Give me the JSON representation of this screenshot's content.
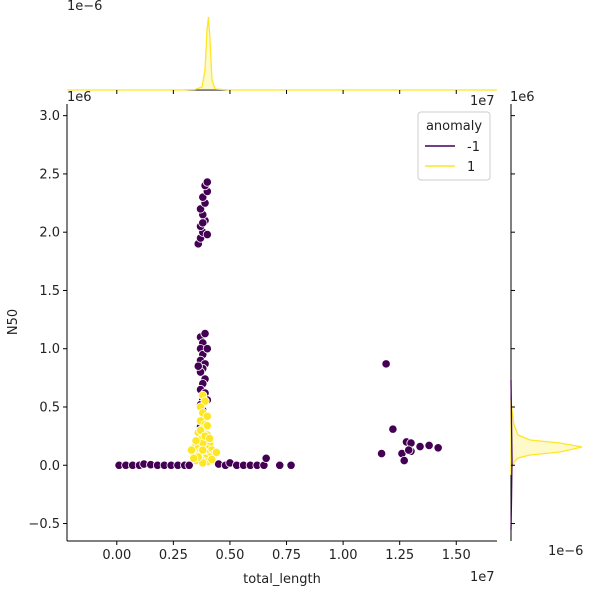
{
  "chart_data": {
    "type": "scatter",
    "subtype": "jointplot",
    "xlabel": "total_length",
    "ylabel": "N50",
    "x_offset_text": "1e7",
    "y_offset_text": "1e6",
    "x_scale": 10000000,
    "y_scale": 1000000,
    "xlim": [
      -2200000,
      16800000
    ],
    "ylim": [
      -650000,
      3100000
    ],
    "x_ticks": [
      0,
      2500000,
      5000000,
      7500000,
      10000000,
      12500000,
      15000000
    ],
    "x_tick_labels": [
      "0.00",
      "0.25",
      "0.50",
      "0.75",
      "1.00",
      "1.25",
      "1.50"
    ],
    "y_ticks": [
      -500000,
      0,
      500000,
      1000000,
      1500000,
      2000000,
      2500000,
      3000000
    ],
    "y_tick_labels": [
      "−0.5",
      "0.0",
      "0.5",
      "1.0",
      "1.5",
      "2.0",
      "2.5",
      "3.0"
    ],
    "grid": false,
    "legend": {
      "title": "anomaly",
      "placement": "top-right",
      "entries": [
        {
          "label": "-1",
          "color": "#440154"
        },
        {
          "label": "1",
          "color": "#fde725"
        }
      ]
    },
    "marginal_top_offset_text": "1e−6",
    "marginal_right_offset_text": "1e−6",
    "series": [
      {
        "name": "-1",
        "color": "#440154",
        "points": [
          [
            100000,
            0
          ],
          [
            400000,
            0
          ],
          [
            700000,
            0
          ],
          [
            1000000,
            0
          ],
          [
            1200000,
            10000
          ],
          [
            1500000,
            5000
          ],
          [
            1800000,
            0
          ],
          [
            2100000,
            0
          ],
          [
            2400000,
            0
          ],
          [
            2700000,
            0
          ],
          [
            3000000,
            0
          ],
          [
            3200000,
            0
          ],
          [
            4500000,
            10000
          ],
          [
            4800000,
            0
          ],
          [
            5000000,
            20000
          ],
          [
            5300000,
            0
          ],
          [
            5600000,
            0
          ],
          [
            5900000,
            0
          ],
          [
            6200000,
            0
          ],
          [
            6500000,
            0
          ],
          [
            6600000,
            60000
          ],
          [
            7200000,
            0
          ],
          [
            7700000,
            0
          ],
          [
            3600000,
            1900000
          ],
          [
            3700000,
            1950000
          ],
          [
            3800000,
            2000000
          ],
          [
            3700000,
            2050000
          ],
          [
            3900000,
            2100000
          ],
          [
            3800000,
            2150000
          ],
          [
            3700000,
            2200000
          ],
          [
            3900000,
            2250000
          ],
          [
            3800000,
            2300000
          ],
          [
            4000000,
            2350000
          ],
          [
            3900000,
            2400000
          ],
          [
            4000000,
            2430000
          ],
          [
            4000000,
            1980000
          ],
          [
            3800000,
            2080000
          ],
          [
            3700000,
            1100000
          ],
          [
            3900000,
            1130000
          ],
          [
            3800000,
            1050000
          ],
          [
            3700000,
            1000000
          ],
          [
            3800000,
            950000
          ],
          [
            3700000,
            900000
          ],
          [
            3900000,
            870000
          ],
          [
            3800000,
            830000
          ],
          [
            3700000,
            800000
          ],
          [
            3900000,
            740000
          ],
          [
            3800000,
            700000
          ],
          [
            3700000,
            650000
          ],
          [
            3900000,
            620000
          ],
          [
            3800000,
            560000
          ],
          [
            3700000,
            520000
          ],
          [
            3800000,
            470000
          ],
          [
            3900000,
            430000
          ],
          [
            3800000,
            380000
          ],
          [
            3700000,
            330000
          ],
          [
            3800000,
            280000
          ],
          [
            3700000,
            240000
          ],
          [
            3800000,
            200000
          ],
          [
            3900000,
            160000
          ],
          [
            3700000,
            120000
          ],
          [
            4000000,
            1000000
          ],
          [
            3600000,
            850000
          ],
          [
            4000000,
            560000
          ],
          [
            11700000,
            100000
          ],
          [
            11900000,
            870000
          ],
          [
            12200000,
            310000
          ],
          [
            12600000,
            100000
          ],
          [
            12700000,
            40000
          ],
          [
            12800000,
            200000
          ],
          [
            13000000,
            120000
          ],
          [
            13000000,
            190000
          ],
          [
            12900000,
            130000
          ],
          [
            13400000,
            160000
          ],
          [
            13800000,
            170000
          ],
          [
            14200000,
            150000
          ]
        ]
      },
      {
        "name": "1",
        "color": "#fde725",
        "points": [
          [
            3800000,
            600000
          ],
          [
            3900000,
            550000
          ],
          [
            3700000,
            500000
          ],
          [
            3800000,
            450000
          ],
          [
            4000000,
            420000
          ],
          [
            3700000,
            380000
          ],
          [
            3900000,
            350000
          ],
          [
            3800000,
            310000
          ],
          [
            3600000,
            280000
          ],
          [
            4000000,
            260000
          ],
          [
            3800000,
            240000
          ],
          [
            3700000,
            220000
          ],
          [
            3900000,
            200000
          ],
          [
            4100000,
            180000
          ],
          [
            3500000,
            170000
          ],
          [
            3800000,
            160000
          ],
          [
            3600000,
            150000
          ],
          [
            4000000,
            140000
          ],
          [
            4200000,
            130000
          ],
          [
            3700000,
            120000
          ],
          [
            3900000,
            110000
          ],
          [
            3400000,
            100000
          ],
          [
            4300000,
            95000
          ],
          [
            3800000,
            90000
          ],
          [
            3600000,
            80000
          ],
          [
            4100000,
            70000
          ],
          [
            3900000,
            60000
          ],
          [
            3700000,
            50000
          ],
          [
            3500000,
            40000
          ],
          [
            4000000,
            30000
          ],
          [
            3800000,
            20000
          ],
          [
            3300000,
            130000
          ],
          [
            4400000,
            110000
          ],
          [
            3800000,
            190000
          ],
          [
            3600000,
            70000
          ],
          [
            4200000,
            50000
          ],
          [
            4000000,
            340000
          ],
          [
            3700000,
            300000
          ],
          [
            3900000,
            250000
          ],
          [
            4100000,
            230000
          ],
          [
            3500000,
            210000
          ],
          [
            3800000,
            130000
          ],
          [
            3400000,
            60000
          ]
        ]
      }
    ]
  }
}
